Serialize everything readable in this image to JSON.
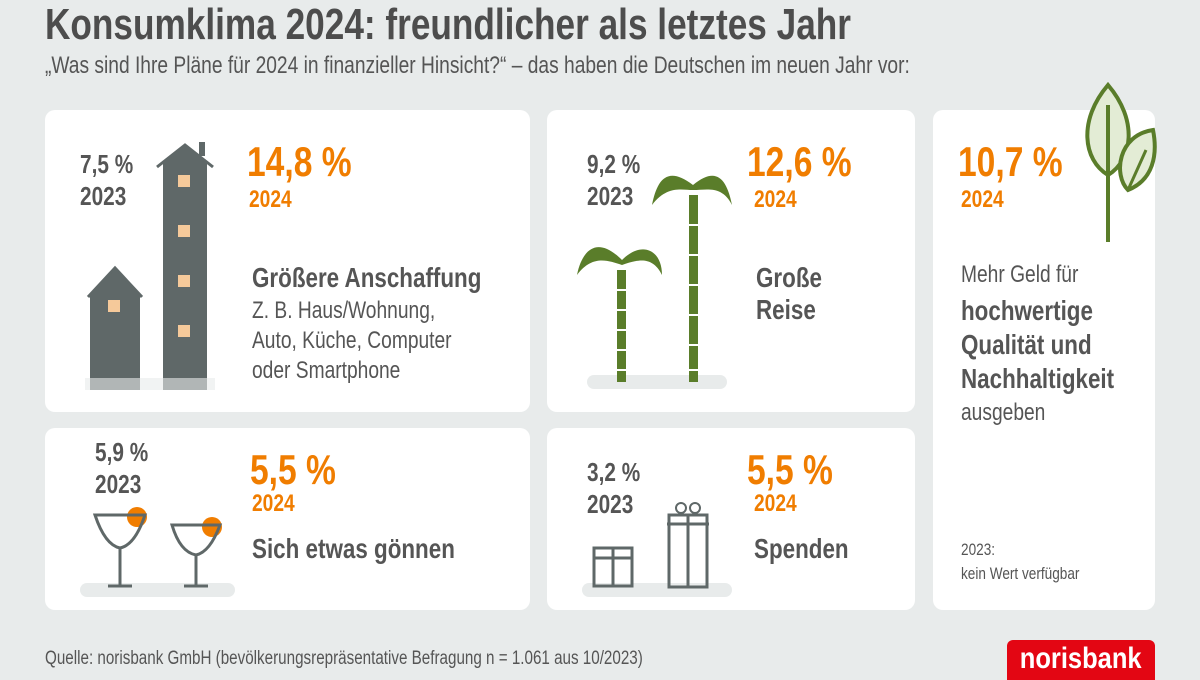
{
  "title": "Konsumklima 2024: freundlicher als letztes Jahr",
  "subtitle": "„Was sind Ihre Pläne für 2024 in finanzieller Hinsicht?“ – das haben die Deutschen im neuen Jahr vor:",
  "colors": {
    "accent": "#f07d00",
    "text": "#555555",
    "green": "#5a7d2a",
    "brand": "#e30613",
    "background": "#e8ebeb"
  },
  "cards": [
    {
      "prev_value": "7,5 %",
      "prev_year": "2023",
      "value": "14,8 %",
      "year": "2024",
      "label": "Größere Anschaffung",
      "description": [
        "Z. B. Haus/Wohnung,",
        "Auto, Küche, Computer",
        "oder Smartphone"
      ],
      "icon": "houses-icon"
    },
    {
      "prev_value": "9,2 %",
      "prev_year": "2023",
      "value": "12,6 %",
      "year": "2024",
      "label": [
        "Große",
        "Reise"
      ],
      "icon": "palm-trees-icon"
    },
    {
      "value": "10,7 %",
      "year": "2024",
      "label_pre": "Mehr Geld für",
      "label": [
        "hochwertige",
        "Qualität und",
        "Nachhaltigkeit"
      ],
      "label_post": "ausgeben",
      "note": [
        "2023:",
        "kein Wert verfügbar"
      ],
      "icon": "leaves-icon"
    },
    {
      "prev_value": "5,9 %",
      "prev_year": "2023",
      "value": "5,5 %",
      "year": "2024",
      "label": "Sich etwas gönnen",
      "icon": "cocktails-icon"
    },
    {
      "prev_value": "3,2 %",
      "prev_year": "2023",
      "value": "5,5 %",
      "year": "2024",
      "label": "Spenden",
      "icon": "gifts-icon"
    }
  ],
  "source": "Quelle: norisbank GmbH (bevölkerungsrepräsentative Befragung n = 1.061 aus 10/2023)",
  "logo": "norisbank"
}
